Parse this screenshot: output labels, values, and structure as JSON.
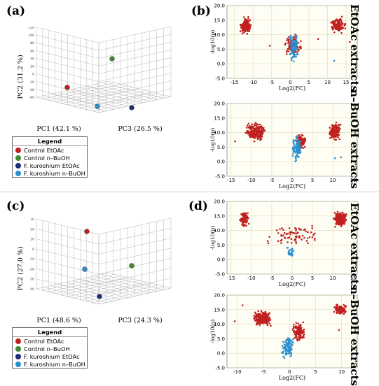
{
  "panels": {
    "a": "(a)",
    "b": "(b)",
    "c": "(c)",
    "d": "(d)"
  },
  "legend": {
    "title": "Legend",
    "items": [
      {
        "label": "Control EtOAc",
        "color": "#c0201f"
      },
      {
        "label": "Control n–BuOH",
        "color": "#3f8b2f"
      },
      {
        "label": "F. kuroshium EtOAc",
        "color": "#1d2c7a"
      },
      {
        "label": "F. kuroshium n–BuOH",
        "color": "#2e8fcf"
      }
    ]
  },
  "side_labels": {
    "etoac": "EtOAc extracts",
    "buoh": "n–BuOH extracts"
  },
  "colors": {
    "control": "#c0201f",
    "fungus": "#2e8fcf",
    "grid": "#dcdcb4",
    "plot_bg": "#fffef4"
  },
  "chart_data": [
    {
      "id": "pca_a",
      "type": "scatter3d",
      "axes": {
        "x": "PC1 (42.1 %)",
        "y": "PC2 (31.2 %)",
        "z": "PC3 (26.5 %)"
      },
      "y_ticks": [
        "-60",
        "-40",
        "-20",
        "0",
        "20",
        "40",
        "60",
        "80",
        "100",
        "120"
      ],
      "points": [
        {
          "group": "Control EtOAc",
          "color": "#c0201f"
        },
        {
          "group": "Control n–BuOH",
          "color": "#3f8b2f"
        },
        {
          "group": "F. kuroshium EtOAc",
          "color": "#1d2c7a"
        },
        {
          "group": "F. kuroshium n–BuOH",
          "color": "#2e8fcf"
        }
      ]
    },
    {
      "id": "volcano_b_etoac",
      "type": "scatter",
      "title": "EtOAc extracts",
      "xlabel": "Log2(FC)",
      "ylabel": "-log10(p)",
      "xlim": [
        -17,
        18
      ],
      "ylim": [
        -5,
        20
      ],
      "xticks": [
        -15,
        -10,
        -5,
        0,
        5,
        10,
        15
      ],
      "yticks": [
        -5,
        0,
        5,
        10,
        15,
        20
      ],
      "clusters": [
        {
          "series": "control",
          "x": [
            -13.5,
            -10.5
          ],
          "y": [
            9.5,
            16.5
          ],
          "n": 140
        },
        {
          "series": "control",
          "x": [
            -1.5,
            3
          ],
          "y": [
            2,
            11
          ],
          "n": 90
        },
        {
          "series": "control",
          "x": [
            10.5,
            15
          ],
          "y": [
            10,
            16.5
          ],
          "n": 130
        },
        {
          "series": "fungus",
          "x": [
            -0.5,
            2.2
          ],
          "y": [
            -0.5,
            11.5
          ],
          "n": 90
        }
      ],
      "extra_points": [
        {
          "series": "control",
          "x": 7.5,
          "y": 8.5
        },
        {
          "series": "control",
          "x": -5.5,
          "y": 6.2
        },
        {
          "series": "control",
          "x": 16,
          "y": 7.5
        },
        {
          "series": "fungus",
          "x": 11.8,
          "y": 1
        }
      ]
    },
    {
      "id": "volcano_b_buoh",
      "type": "scatter",
      "title": "n–BuOH extracts",
      "xlabel": "Log2(FC)",
      "ylabel": "-log10(p)",
      "xlim": [
        -16,
        16
      ],
      "ylim": [
        -5,
        20
      ],
      "xticks": [
        -15,
        -10,
        -5,
        0,
        5,
        10,
        15
      ],
      "yticks": [
        -5,
        0,
        5,
        10,
        15,
        20
      ],
      "clusters": [
        {
          "series": "control",
          "x": [
            -11.5,
            -6.5
          ],
          "y": [
            6.5,
            14
          ],
          "n": 200
        },
        {
          "series": "control",
          "x": [
            1,
            3.5
          ],
          "y": [
            4,
            10
          ],
          "n": 90
        },
        {
          "series": "control",
          "x": [
            9,
            12
          ],
          "y": [
            6.5,
            14
          ],
          "n": 120
        },
        {
          "series": "fungus",
          "x": [
            0,
            2.5
          ],
          "y": [
            -0.5,
            9.5
          ],
          "n": 90
        }
      ],
      "extra_points": [
        {
          "series": "fungus",
          "x": 10.5,
          "y": 1.2
        },
        {
          "series": "fungus",
          "x": 12,
          "y": 1.5
        },
        {
          "series": "control",
          "x": -14,
          "y": 7
        }
      ]
    },
    {
      "id": "pca_c",
      "type": "scatter3d",
      "axes": {
        "x": "PC1 (48.6 %)",
        "y": "PC2 (27.0 %)",
        "z": "PC3 (24.3 %)"
      },
      "y_ticks": [
        "-40",
        "-30",
        "-20",
        "-10",
        "0",
        "10",
        "20",
        "30"
      ],
      "points": [
        {
          "group": "Control EtOAc",
          "color": "#c0201f"
        },
        {
          "group": "Control n–BuOH",
          "color": "#3f8b2f"
        },
        {
          "group": "F. kuroshium EtOAc",
          "color": "#1d2c7a"
        },
        {
          "group": "F. kuroshium n–BuOH",
          "color": "#2e8fcf"
        }
      ]
    },
    {
      "id": "volcano_d_etoac",
      "type": "scatter",
      "title": "EtOAc extracts",
      "xlabel": "Log2(FC)",
      "ylabel": "-log10(p)",
      "xlim": [
        -16,
        16
      ],
      "ylim": [
        -5,
        20
      ],
      "xticks": [
        -15,
        -10,
        -5,
        0,
        5,
        10,
        15
      ],
      "yticks": [
        -5,
        0,
        5,
        10,
        15,
        20
      ],
      "clusters": [
        {
          "series": "control",
          "x": [
            -13,
            -10.5
          ],
          "y": [
            11,
            17
          ],
          "n": 80
        },
        {
          "series": "control",
          "x": [
            -7,
            7
          ],
          "y": [
            4,
            13
          ],
          "n": 70
        },
        {
          "series": "control",
          "x": [
            10,
            13.5
          ],
          "y": [
            11,
            17
          ],
          "n": 200
        },
        {
          "series": "fungus",
          "x": [
            -1.5,
            0.5
          ],
          "y": [
            0,
            5
          ],
          "n": 25
        }
      ],
      "extra_points": [
        {
          "series": "control",
          "x": -3,
          "y": 10.5
        },
        {
          "series": "control",
          "x": 3,
          "y": 7.5
        }
      ]
    },
    {
      "id": "volcano_d_buoh",
      "type": "scatter",
      "title": "n–BuOH extracts",
      "xlabel": "Log2(FC)",
      "ylabel": "-log10(p)",
      "xlim": [
        -12,
        13
      ],
      "ylim": [
        -5,
        20
      ],
      "xticks": [
        -10,
        -5,
        0,
        5,
        10
      ],
      "yticks": [
        -5,
        0,
        5,
        10,
        15,
        20
      ],
      "clusters": [
        {
          "series": "control",
          "x": [
            -7,
            -3.5
          ],
          "y": [
            9,
            15
          ],
          "n": 200
        },
        {
          "series": "control",
          "x": [
            0.5,
            3
          ],
          "y": [
            3,
            11.5
          ],
          "n": 110
        },
        {
          "series": "control",
          "x": [
            8.5,
            11
          ],
          "y": [
            13,
            17
          ],
          "n": 100
        },
        {
          "series": "fungus",
          "x": [
            -1.5,
            1
          ],
          "y": [
            -3,
            7
          ],
          "n": 100
        }
      ],
      "extra_points": [
        {
          "series": "control",
          "x": -9,
          "y": 16.5
        },
        {
          "series": "control",
          "x": 9.5,
          "y": 8
        },
        {
          "series": "control",
          "x": -10.5,
          "y": 11
        }
      ]
    }
  ]
}
